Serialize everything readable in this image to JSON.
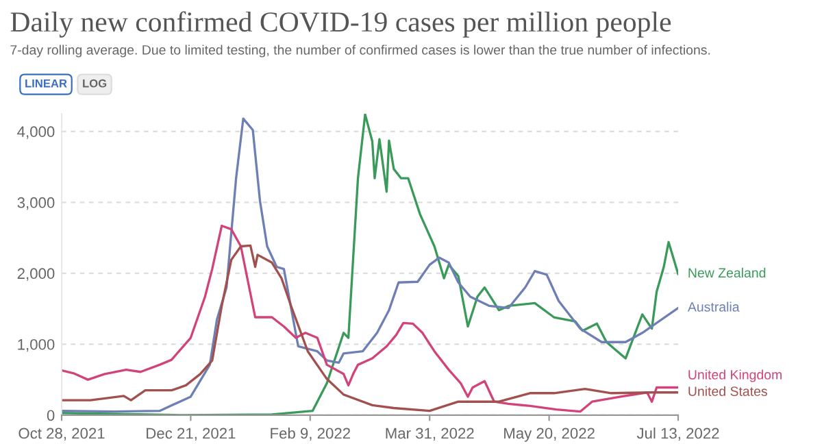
{
  "chart_data": {
    "type": "line",
    "title": "Daily new confirmed COVID-19 cases per million people",
    "subtitle": "7-day rolling average. Due to limited testing, the number of confirmed cases is lower than the true number of infections.",
    "annotations": [
      "LINEAR",
      "LOG"
    ],
    "xlim": [
      "2021-10-28",
      "2022-07-13"
    ],
    "xticks": [
      {
        "value": "2021-10-28",
        "label": "Oct 28, 2021"
      },
      {
        "value": "2021-12-21",
        "label": "Dec 21, 2021"
      },
      {
        "value": "2022-02-09",
        "label": "Feb 9, 2022"
      },
      {
        "value": "2022-03-31",
        "label": "Mar 31, 2022"
      },
      {
        "value": "2022-05-20",
        "label": "May 20, 2022"
      },
      {
        "value": "2022-07-13",
        "label": "Jul 13, 2022"
      }
    ],
    "ylim": [
      0,
      4250
    ],
    "yticks": [
      0,
      {
        "value": 1000,
        "label": "1,000"
      },
      {
        "value": 2000,
        "label": "2,000"
      },
      {
        "value": 3000,
        "label": "3,000"
      },
      {
        "value": 4000,
        "label": "4,000"
      }
    ],
    "grid": "y",
    "legend": "right",
    "line_style": "solid",
    "series": [
      {
        "name": "New Zealand",
        "color": "#3a9a5a",
        "x": [
          "2021-10-28",
          "2021-12-17",
          "2022-01-24",
          "2022-02-10",
          "2022-02-16",
          "2022-02-23",
          "2022-02-25",
          "2022-03-01",
          "2022-03-04",
          "2022-03-07",
          "2022-03-08",
          "2022-03-10",
          "2022-03-13",
          "2022-03-14",
          "2022-03-16",
          "2022-03-19",
          "2022-03-22",
          "2022-03-27",
          "2022-04-02",
          "2022-04-06",
          "2022-04-08",
          "2022-04-12",
          "2022-04-16",
          "2022-04-20",
          "2022-04-23",
          "2022-04-29",
          "2022-05-03",
          "2022-05-14",
          "2022-05-22",
          "2022-05-31",
          "2022-06-03",
          "2022-06-09",
          "2022-06-13",
          "2022-06-21",
          "2022-06-28",
          "2022-07-02",
          "2022-07-04",
          "2022-07-07",
          "2022-07-09",
          "2022-07-13"
        ],
        "values": [
          30,
          0,
          10,
          60,
          450,
          1160,
          1090,
          3340,
          4240,
          3860,
          3340,
          3890,
          3150,
          3870,
          3470,
          3340,
          3340,
          2830,
          2380,
          1930,
          2120,
          1960,
          1250,
          1670,
          1800,
          1480,
          1540,
          1580,
          1380,
          1320,
          1190,
          1290,
          1030,
          800,
          1420,
          1220,
          1740,
          2090,
          2440,
          1990
        ]
      },
      {
        "name": "Australia",
        "color": "#6d7fb5",
        "x": [
          "2021-10-28",
          "2021-11-19",
          "2021-12-08",
          "2021-12-21",
          "2021-12-29",
          "2022-01-01",
          "2022-01-05",
          "2022-01-09",
          "2022-01-12",
          "2022-01-16",
          "2022-01-19",
          "2022-01-22",
          "2022-01-26",
          "2022-01-29",
          "2022-02-04",
          "2022-02-12",
          "2022-02-16",
          "2022-02-21",
          "2022-02-23",
          "2022-03-03",
          "2022-03-09",
          "2022-03-14",
          "2022-03-18",
          "2022-03-26",
          "2022-03-31",
          "2022-04-04",
          "2022-04-08",
          "2022-04-12",
          "2022-04-17",
          "2022-04-25",
          "2022-05-03",
          "2022-05-10",
          "2022-05-14",
          "2022-05-19",
          "2022-05-24",
          "2022-06-02",
          "2022-06-11",
          "2022-06-21",
          "2022-06-28",
          "2022-07-13"
        ],
        "values": [
          60,
          50,
          60,
          260,
          710,
          1350,
          1800,
          3340,
          4180,
          4020,
          3020,
          2380,
          2090,
          2060,
          970,
          900,
          770,
          740,
          870,
          900,
          1160,
          1480,
          1870,
          1880,
          2120,
          2220,
          2150,
          1870,
          1670,
          1540,
          1510,
          1800,
          2030,
          1980,
          1610,
          1220,
          1030,
          1030,
          1160,
          1510
        ]
      },
      {
        "name": "United Kingdom",
        "color": "#d2437a",
        "x": [
          "2021-10-28",
          "2021-11-02",
          "2021-11-08",
          "2021-11-15",
          "2021-11-24",
          "2021-11-30",
          "2021-12-08",
          "2021-12-13",
          "2021-12-21",
          "2021-12-27",
          "2021-12-30",
          "2022-01-03",
          "2022-01-07",
          "2022-01-11",
          "2022-01-17",
          "2022-01-24",
          "2022-01-29",
          "2022-02-03",
          "2022-02-07",
          "2022-02-12",
          "2022-02-16",
          "2022-02-23",
          "2022-02-25",
          "2022-02-27",
          "2022-03-01",
          "2022-03-07",
          "2022-03-13",
          "2022-03-17",
          "2022-03-20",
          "2022-03-24",
          "2022-03-28",
          "2022-04-02",
          "2022-04-08",
          "2022-04-13",
          "2022-04-16",
          "2022-04-18",
          "2022-04-23",
          "2022-04-27",
          "2022-05-03",
          "2022-05-12",
          "2022-05-23",
          "2022-06-02",
          "2022-06-07",
          "2022-06-19",
          "2022-06-30",
          "2022-07-02",
          "2022-07-04",
          "2022-07-13"
        ],
        "values": [
          630,
          590,
          500,
          580,
          640,
          610,
          710,
          780,
          1090,
          1670,
          2060,
          2670,
          2620,
          2380,
          1380,
          1380,
          1250,
          1090,
          1160,
          1090,
          710,
          580,
          420,
          580,
          710,
          800,
          970,
          1130,
          1300,
          1290,
          1160,
          900,
          640,
          450,
          260,
          390,
          480,
          190,
          160,
          130,
          80,
          50,
          190,
          260,
          320,
          190,
          390,
          390
        ]
      },
      {
        "name": "United States",
        "color": "#a2504e",
        "x": [
          "2021-10-28",
          "2021-11-09",
          "2021-11-23",
          "2021-11-26",
          "2021-12-02",
          "2021-12-13",
          "2021-12-19",
          "2021-12-25",
          "2021-12-30",
          "2022-01-03",
          "2022-01-07",
          "2022-01-11",
          "2022-01-15",
          "2022-01-17",
          "2022-01-18",
          "2022-01-24",
          "2022-01-28",
          "2022-02-01",
          "2022-02-08",
          "2022-02-16",
          "2022-02-23",
          "2022-03-07",
          "2022-03-16",
          "2022-03-31",
          "2022-04-12",
          "2022-04-29",
          "2022-05-12",
          "2022-05-22",
          "2022-06-04",
          "2022-06-15",
          "2022-07-02",
          "2022-07-13"
        ],
        "values": [
          210,
          210,
          270,
          210,
          350,
          350,
          420,
          580,
          770,
          1540,
          2190,
          2380,
          2390,
          2090,
          2260,
          2150,
          1930,
          1540,
          900,
          510,
          290,
          140,
          100,
          60,
          190,
          190,
          310,
          310,
          370,
          310,
          320,
          320
        ]
      }
    ]
  }
}
